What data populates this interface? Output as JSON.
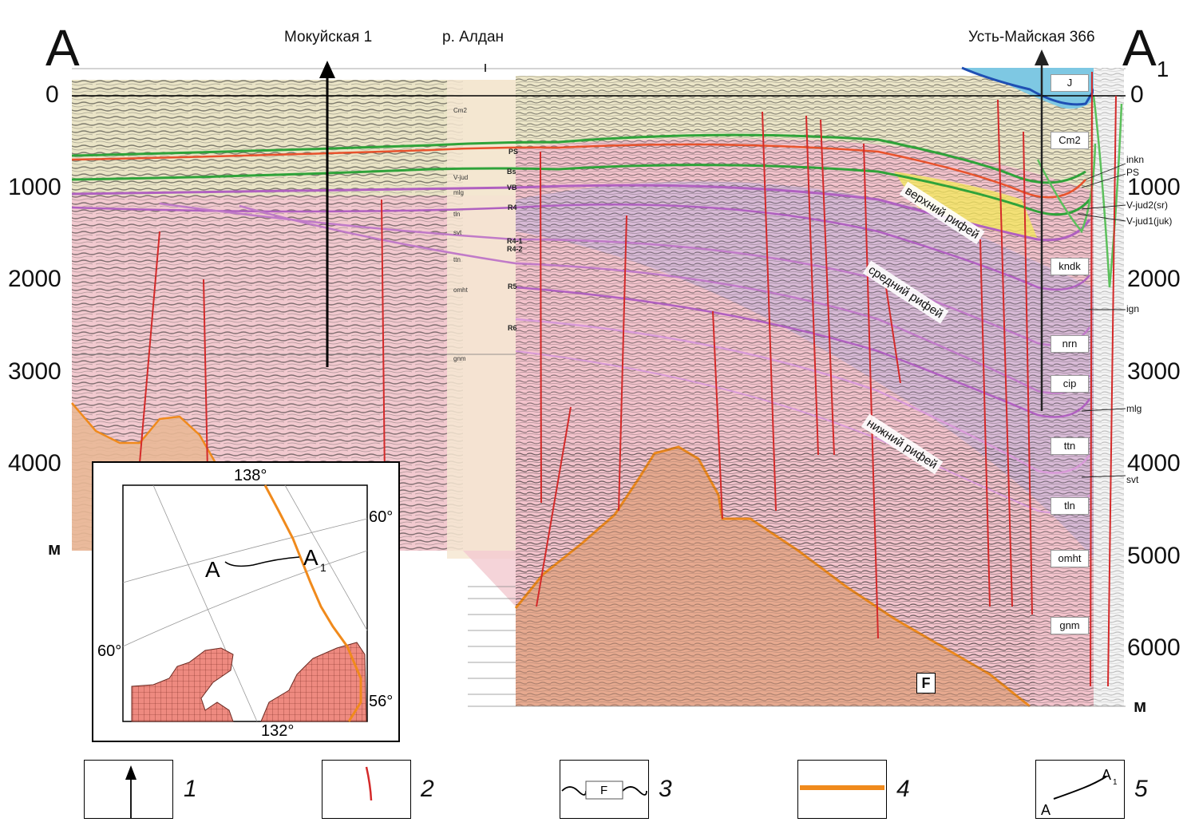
{
  "section": {
    "end_left": "A",
    "end_right": "A",
    "end_right_sub": "1",
    "well_left": "Мокуйская 1",
    "river": "р. Алдан",
    "well_right": "Усть-Майская 366",
    "depth_ticks_left": [
      "0",
      "1000",
      "2000",
      "3000",
      "4000"
    ],
    "depth_ticks_right": [
      "0",
      "1000",
      "2000",
      "3000",
      "4000",
      "5000",
      "6000"
    ],
    "depth_unit_left": "м",
    "depth_unit_right": "м",
    "fault_marker": "F",
    "zones": {
      "upper": "верхний рифей",
      "middle": "средний рифей",
      "lower": "нижний рифей"
    },
    "formations_boxed": [
      "J",
      "Cm2",
      "kndk",
      "nrn",
      "cip",
      "ttn",
      "tln",
      "omht",
      "gnm"
    ],
    "formations_side": [
      "inkn",
      "PS",
      "V-jud2(sr)",
      "V-jud1(juk)",
      "ign",
      "mlg",
      "svt"
    ],
    "well_column_labels": [
      "Cm2",
      "V-jud",
      "mlg",
      "tln",
      "svt",
      "ttn",
      "omht",
      "gnm"
    ],
    "mid_horizon_labels": [
      "PS",
      "Bs",
      "VB",
      "R4",
      "R4-1",
      "R4-2",
      "R5",
      "R6"
    ]
  },
  "inset_map": {
    "lon_top": "138°",
    "lon_bottom": "132°",
    "lat_top_right": "60°",
    "lat_left": "60°",
    "lat_bottom_right": "56°",
    "label_a": "A",
    "label_a1": "A",
    "label_a1_sub": "1"
  },
  "legend": {
    "items": [
      {
        "num": "1",
        "icon": "well-arrow-icon"
      },
      {
        "num": "2",
        "icon": "fault-line-icon"
      },
      {
        "num": "3",
        "icon": "fault-box-icon",
        "box_text": "F"
      },
      {
        "num": "4",
        "icon": "orange-line-icon"
      },
      {
        "num": "5",
        "icon": "profile-line-icon",
        "a": "A",
        "a1": "A",
        "a1_sub": "1"
      }
    ]
  },
  "colors": {
    "fault": "#d42a2a",
    "basement": "#f08a1c",
    "horizon_green": "#2fa33a",
    "horizon_orange": "#e8522c",
    "horizon_purple": "#b060c0",
    "jurassic": "#7ec8e3",
    "rifey_pink": "#f3c3cc"
  }
}
